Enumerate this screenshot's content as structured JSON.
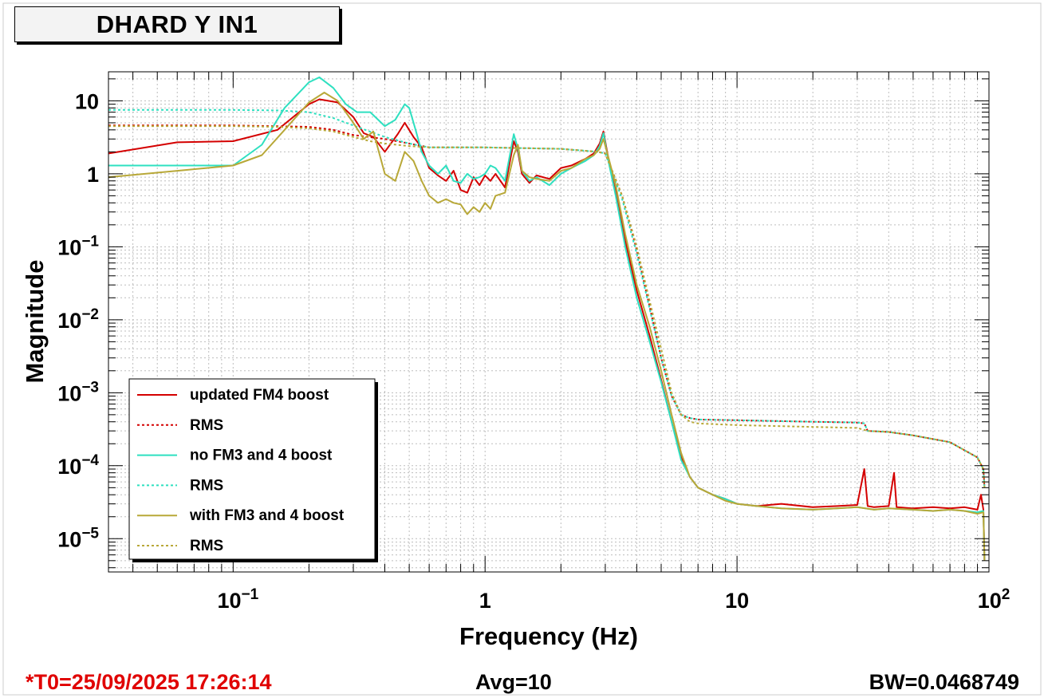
{
  "window": {
    "title": "DHARD Y IN1",
    "footer_left": "*T0=25/09/2025 17:26:14",
    "footer_center": "Avg=10",
    "footer_right": "BW=0.0468749"
  },
  "chart_data": {
    "type": "line",
    "title": "DHARD Y IN1",
    "xlabel": "Frequency (Hz)",
    "ylabel": "Magnitude",
    "xscale": "log",
    "yscale": "log",
    "xlim": [
      0.032,
      100
    ],
    "ylim": [
      3.5e-06,
      25
    ],
    "grid": true,
    "legend_position": "bottom-left",
    "x_tick_labels": [
      {
        "value": 0.1,
        "base": "10",
        "exp": "−1"
      },
      {
        "value": 1,
        "base": "1",
        "exp": ""
      },
      {
        "value": 10,
        "base": "10",
        "exp": ""
      },
      {
        "value": 100,
        "base": "10",
        "exp": "2"
      }
    ],
    "y_tick_labels": [
      {
        "value": 10,
        "base": "10",
        "exp": ""
      },
      {
        "value": 1,
        "base": "1",
        "exp": ""
      },
      {
        "value": 0.1,
        "base": "10",
        "exp": "−1"
      },
      {
        "value": 0.01,
        "base": "10",
        "exp": "−2"
      },
      {
        "value": 0.001,
        "base": "10",
        "exp": "−3"
      },
      {
        "value": 0.0001,
        "base": "10",
        "exp": "−4"
      },
      {
        "value": 1e-05,
        "base": "10",
        "exp": "−5"
      }
    ],
    "series": [
      {
        "name": "updated FM4 boost",
        "color": "#d40000",
        "style": "solid",
        "x": [
          0.032,
          0.06,
          0.1,
          0.15,
          0.2,
          0.22,
          0.26,
          0.3,
          0.33,
          0.36,
          0.4,
          0.45,
          0.48,
          0.52,
          0.56,
          0.6,
          0.65,
          0.7,
          0.75,
          0.8,
          0.85,
          0.9,
          0.95,
          1.0,
          1.05,
          1.1,
          1.2,
          1.3,
          1.35,
          1.4,
          1.5,
          1.6,
          1.8,
          2.0,
          2.2,
          2.5,
          2.7,
          2.85,
          2.95,
          3.1,
          3.3,
          3.6,
          4.0,
          4.5,
          5.0,
          5.5,
          6.0,
          6.5,
          7.0,
          8.0,
          9.0,
          10.0,
          12.0,
          15.0,
          20.0,
          25.0,
          30.0,
          32.0,
          33.0,
          35.0,
          40.0,
          42.0,
          43.0,
          50.0,
          60.0,
          70.0,
          80.0,
          90.0,
          93.0,
          95.0,
          96.0
        ],
        "y": [
          1.9,
          2.7,
          2.8,
          4.0,
          9.0,
          10.5,
          9.5,
          6.0,
          3.6,
          3.2,
          2.0,
          3.5,
          5.0,
          3.2,
          2.3,
          1.2,
          0.95,
          0.8,
          1.1,
          0.6,
          0.55,
          0.9,
          0.7,
          0.95,
          0.8,
          1.0,
          0.65,
          2.8,
          2.0,
          1.0,
          0.75,
          0.95,
          0.85,
          1.2,
          1.3,
          1.6,
          1.9,
          2.6,
          3.8,
          1.5,
          0.55,
          0.12,
          0.025,
          0.006,
          0.0015,
          0.0004,
          0.00013,
          7e-05,
          5e-05,
          4e-05,
          3.5e-05,
          3e-05,
          2.8e-05,
          3e-05,
          2.7e-05,
          2.8e-05,
          2.9e-05,
          9e-05,
          2.8e-05,
          2.7e-05,
          2.8e-05,
          8e-05,
          2.7e-05,
          2.6e-05,
          2.7e-05,
          2.6e-05,
          2.7e-05,
          2.5e-05,
          4e-05,
          2.5e-05,
          5e-06
        ]
      },
      {
        "name": "RMS",
        "color": "#d40000",
        "style": "dotted",
        "x": [
          0.032,
          0.1,
          0.14,
          0.2,
          0.25,
          0.3,
          0.4,
          0.5,
          0.6,
          1.0,
          2.0,
          2.8,
          3.0,
          3.5,
          4.0,
          4.5,
          5.0,
          5.5,
          6.0,
          6.5,
          7.0,
          10.0,
          20.0,
          30.0,
          32.0,
          33.0,
          40.0,
          50.0,
          70.0,
          90.0,
          95.0,
          96.0
        ],
        "y": [
          4.6,
          4.6,
          4.5,
          4.4,
          4.0,
          3.4,
          3.0,
          2.6,
          2.3,
          2.3,
          2.2,
          2.0,
          1.9,
          0.5,
          0.09,
          0.015,
          0.003,
          0.0009,
          0.0005,
          0.00045,
          0.00043,
          0.00042,
          0.0004,
          0.00039,
          0.00038,
          0.0003,
          0.00029,
          0.00026,
          0.00021,
          0.00013,
          9e-05,
          5e-05
        ]
      },
      {
        "name": "no FM3 and 4 boost",
        "color": "#2ee0c0",
        "style": "solid",
        "x": [
          0.032,
          0.06,
          0.1,
          0.13,
          0.16,
          0.2,
          0.22,
          0.25,
          0.28,
          0.31,
          0.35,
          0.4,
          0.44,
          0.48,
          0.5,
          0.53,
          0.56,
          0.6,
          0.65,
          0.7,
          0.75,
          0.8,
          0.85,
          0.9,
          0.95,
          1.0,
          1.05,
          1.1,
          1.2,
          1.3,
          1.35,
          1.4,
          1.5,
          1.6,
          1.8,
          2.0,
          2.2,
          2.5,
          2.7,
          2.85,
          2.95,
          3.1,
          3.3,
          3.6,
          4.0,
          4.5,
          5.0,
          5.5,
          6.0,
          6.5,
          7.0,
          8.0,
          9.0,
          10.0,
          12.0,
          15.0,
          20.0,
          25.0,
          30.0,
          35.0,
          40.0,
          50.0,
          60.0,
          70.0,
          80.0,
          90.0,
          95.0,
          96.0
        ],
        "y": [
          1.3,
          1.3,
          1.3,
          2.5,
          8.0,
          18.0,
          21.0,
          15.0,
          9.0,
          7.0,
          7.0,
          4.5,
          5.5,
          9.0,
          8.0,
          4.0,
          2.0,
          1.3,
          1.0,
          1.3,
          0.8,
          0.75,
          1.0,
          0.85,
          0.9,
          1.0,
          1.3,
          1.2,
          0.8,
          3.5,
          2.2,
          1.1,
          0.8,
          0.9,
          0.7,
          1.0,
          1.2,
          1.5,
          1.8,
          2.4,
          3.6,
          1.4,
          0.5,
          0.1,
          0.02,
          0.005,
          0.0014,
          0.0004,
          0.00012,
          7e-05,
          5e-05,
          4e-05,
          3.5e-05,
          3e-05,
          2.8e-05,
          2.6e-05,
          2.5e-05,
          2.6e-05,
          2.7e-05,
          2.5e-05,
          2.6e-05,
          2.5e-05,
          2.4e-05,
          2.5e-05,
          2.4e-05,
          2.3e-05,
          2.4e-05,
          5e-06
        ]
      },
      {
        "name": "RMS",
        "color": "#2ee0c0",
        "style": "dotted",
        "x": [
          0.032,
          0.1,
          0.15,
          0.2,
          0.25,
          0.3,
          0.4,
          0.5,
          0.6,
          1.0,
          2.0,
          2.8,
          3.0,
          3.5,
          4.0,
          4.5,
          5.0,
          5.5,
          6.0,
          6.5,
          7.0,
          10.0,
          20.0,
          30.0,
          32.0,
          33.0,
          40.0,
          50.0,
          70.0,
          90.0,
          95.0,
          96.0
        ],
        "y": [
          7.5,
          7.5,
          7.4,
          7.0,
          5.8,
          4.6,
          3.2,
          2.6,
          2.3,
          2.3,
          2.2,
          2.0,
          1.9,
          0.45,
          0.08,
          0.014,
          0.003,
          0.0009,
          0.0005,
          0.00045,
          0.00043,
          0.00042,
          0.0004,
          0.00039,
          0.00038,
          0.0003,
          0.00029,
          0.00026,
          0.00021,
          0.00013,
          9e-05,
          5e-05
        ]
      },
      {
        "name": "with FM3 and 4 boost",
        "color": "#b8a838",
        "style": "solid",
        "x": [
          0.032,
          0.06,
          0.1,
          0.13,
          0.16,
          0.2,
          0.23,
          0.26,
          0.3,
          0.33,
          0.36,
          0.4,
          0.44,
          0.48,
          0.52,
          0.56,
          0.6,
          0.65,
          0.7,
          0.75,
          0.8,
          0.85,
          0.9,
          0.95,
          1.0,
          1.05,
          1.1,
          1.2,
          1.3,
          1.35,
          1.4,
          1.5,
          1.6,
          1.8,
          2.0,
          2.2,
          2.5,
          2.7,
          2.85,
          2.95,
          3.1,
          3.3,
          3.6,
          4.0,
          4.5,
          5.0,
          5.5,
          6.0,
          6.5,
          7.0,
          8.0,
          9.0,
          10.0,
          12.0,
          15.0,
          20.0,
          25.0,
          30.0,
          35.0,
          40.0,
          50.0,
          60.0,
          70.0,
          80.0,
          90.0,
          95.0,
          96.0
        ],
        "y": [
          0.9,
          1.1,
          1.3,
          1.8,
          4.0,
          9.5,
          13.0,
          10.0,
          5.0,
          3.0,
          3.8,
          1.0,
          0.8,
          2.0,
          1.5,
          0.8,
          0.5,
          0.4,
          0.45,
          0.4,
          0.38,
          0.28,
          0.35,
          0.3,
          0.4,
          0.33,
          0.5,
          0.55,
          1.8,
          2.5,
          1.1,
          0.9,
          0.85,
          0.8,
          1.1,
          1.2,
          1.6,
          1.8,
          2.2,
          3.0,
          1.6,
          0.7,
          0.15,
          0.03,
          0.008,
          0.002,
          0.0005,
          0.00015,
          7e-05,
          5e-05,
          4e-05,
          3.3e-05,
          3e-05,
          2.8e-05,
          2.6e-05,
          2.5e-05,
          2.6e-05,
          2.7e-05,
          2.5e-05,
          2.6e-05,
          2.5e-05,
          2.4e-05,
          2.5e-05,
          2.4e-05,
          2.2e-05,
          2.3e-05,
          5e-06
        ]
      },
      {
        "name": "RMS",
        "color": "#b8a838",
        "style": "dotted",
        "x": [
          0.032,
          0.1,
          0.15,
          0.2,
          0.25,
          0.3,
          0.35,
          0.4,
          0.5,
          0.6,
          1.0,
          2.0,
          2.8,
          3.0,
          3.5,
          4.0,
          4.5,
          5.0,
          5.5,
          6.0,
          6.5,
          7.0,
          10.0,
          20.0,
          30.0,
          33.0,
          40.0,
          50.0,
          70.0,
          90.0,
          95.0,
          96.0
        ],
        "y": [
          4.5,
          4.5,
          4.4,
          4.2,
          3.8,
          3.2,
          2.8,
          2.6,
          2.4,
          2.3,
          2.3,
          2.2,
          2.0,
          1.9,
          0.5,
          0.1,
          0.018,
          0.004,
          0.001,
          0.0005,
          0.0004,
          0.00038,
          0.00036,
          0.00034,
          0.00033,
          0.0003,
          0.00029,
          0.00026,
          0.00021,
          0.00013,
          9e-05,
          5e-05
        ]
      }
    ]
  }
}
